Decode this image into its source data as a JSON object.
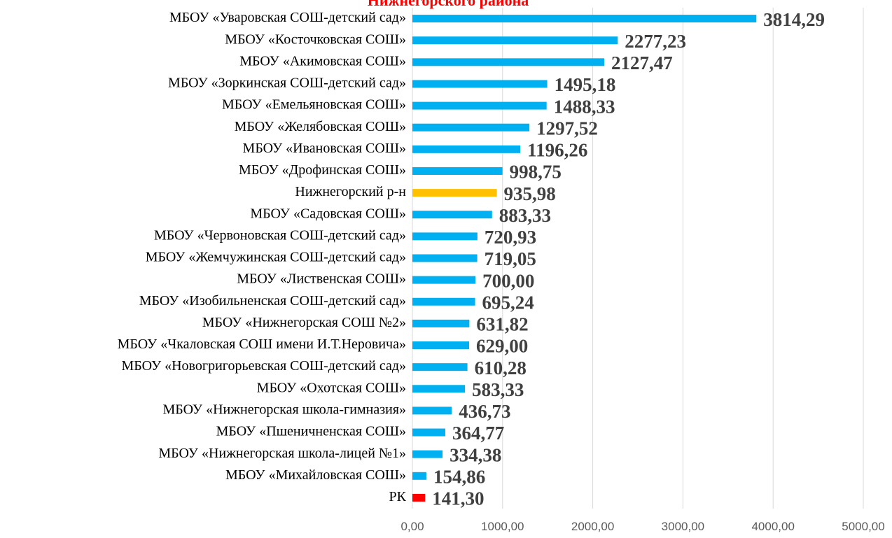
{
  "chart_data": {
    "type": "barh",
    "title": "Нижнегорского района",
    "categories": [
      "МБОУ «Уваровская СОШ-детский сад»",
      "МБОУ «Косточковская СОШ»",
      "МБОУ «Акимовская СОШ»",
      "МБОУ «Зоркинская СОШ-детский сад»",
      "МБОУ «Емельяновская СОШ»",
      "МБОУ «Желябовская СОШ»",
      "МБОУ «Ивановская СОШ»",
      "МБОУ «Дрофинская СОШ»",
      "Нижнегорский р-н",
      "МБОУ «Садовская СОШ»",
      "МБОУ «Червоновская СОШ-детский сад»",
      "МБОУ «Жемчужинская СОШ-детский сад»",
      "МБОУ «Лиственская СОШ»",
      "МБОУ «Изобильненская СОШ-детский сад»",
      "МБОУ «Нижнегорская СОШ №2»",
      "МБОУ «Чкаловская СОШ имени И.Т.Неровича»",
      "МБОУ «Новогригорьевская СОШ-детский сад»",
      "МБОУ «Охотская СОШ»",
      "МБОУ «Нижнегорская школа-гимназия»",
      "МБОУ «Пшеничненская СОШ»",
      "МБОУ «Нижнегорская школа-лицей №1»",
      "МБОУ «Михайловская СОШ»",
      "РК"
    ],
    "values": [
      3814.29,
      2277.23,
      2127.47,
      1495.18,
      1488.33,
      1297.52,
      1196.26,
      998.75,
      935.98,
      883.33,
      720.93,
      719.05,
      700.0,
      695.24,
      631.82,
      629.0,
      610.28,
      583.33,
      436.73,
      364.77,
      334.38,
      154.86,
      141.3
    ],
    "value_labels": [
      "3814,29",
      "2277,23",
      "2127,47",
      "1495,18",
      "1488,33",
      "1297,52",
      "1196,26",
      "998,75",
      "935,98",
      "883,33",
      "720,93",
      "719,05",
      "700,00",
      "695,24",
      "631,82",
      "629,00",
      "610,28",
      "583,33",
      "436,73",
      "364,77",
      "334,38",
      "154,86",
      "141,30"
    ],
    "colors": [
      "#00b0f0",
      "#00b0f0",
      "#00b0f0",
      "#00b0f0",
      "#00b0f0",
      "#00b0f0",
      "#00b0f0",
      "#00b0f0",
      "#ffc000",
      "#00b0f0",
      "#00b0f0",
      "#00b0f0",
      "#00b0f0",
      "#00b0f0",
      "#00b0f0",
      "#00b0f0",
      "#00b0f0",
      "#00b0f0",
      "#00b0f0",
      "#00b0f0",
      "#00b0f0",
      "#00b0f0",
      "#ff0000"
    ],
    "xlim": [
      0,
      5000
    ],
    "xticks": [
      {
        "value": 0,
        "label": "0,00"
      },
      {
        "value": 1000,
        "label": "1000,00"
      },
      {
        "value": 2000,
        "label": "2000,00"
      },
      {
        "value": 3000,
        "label": "3000,00"
      },
      {
        "value": 4000,
        "label": "4000,00"
      },
      {
        "value": 5000,
        "label": "5000,00"
      }
    ],
    "grid": true
  }
}
